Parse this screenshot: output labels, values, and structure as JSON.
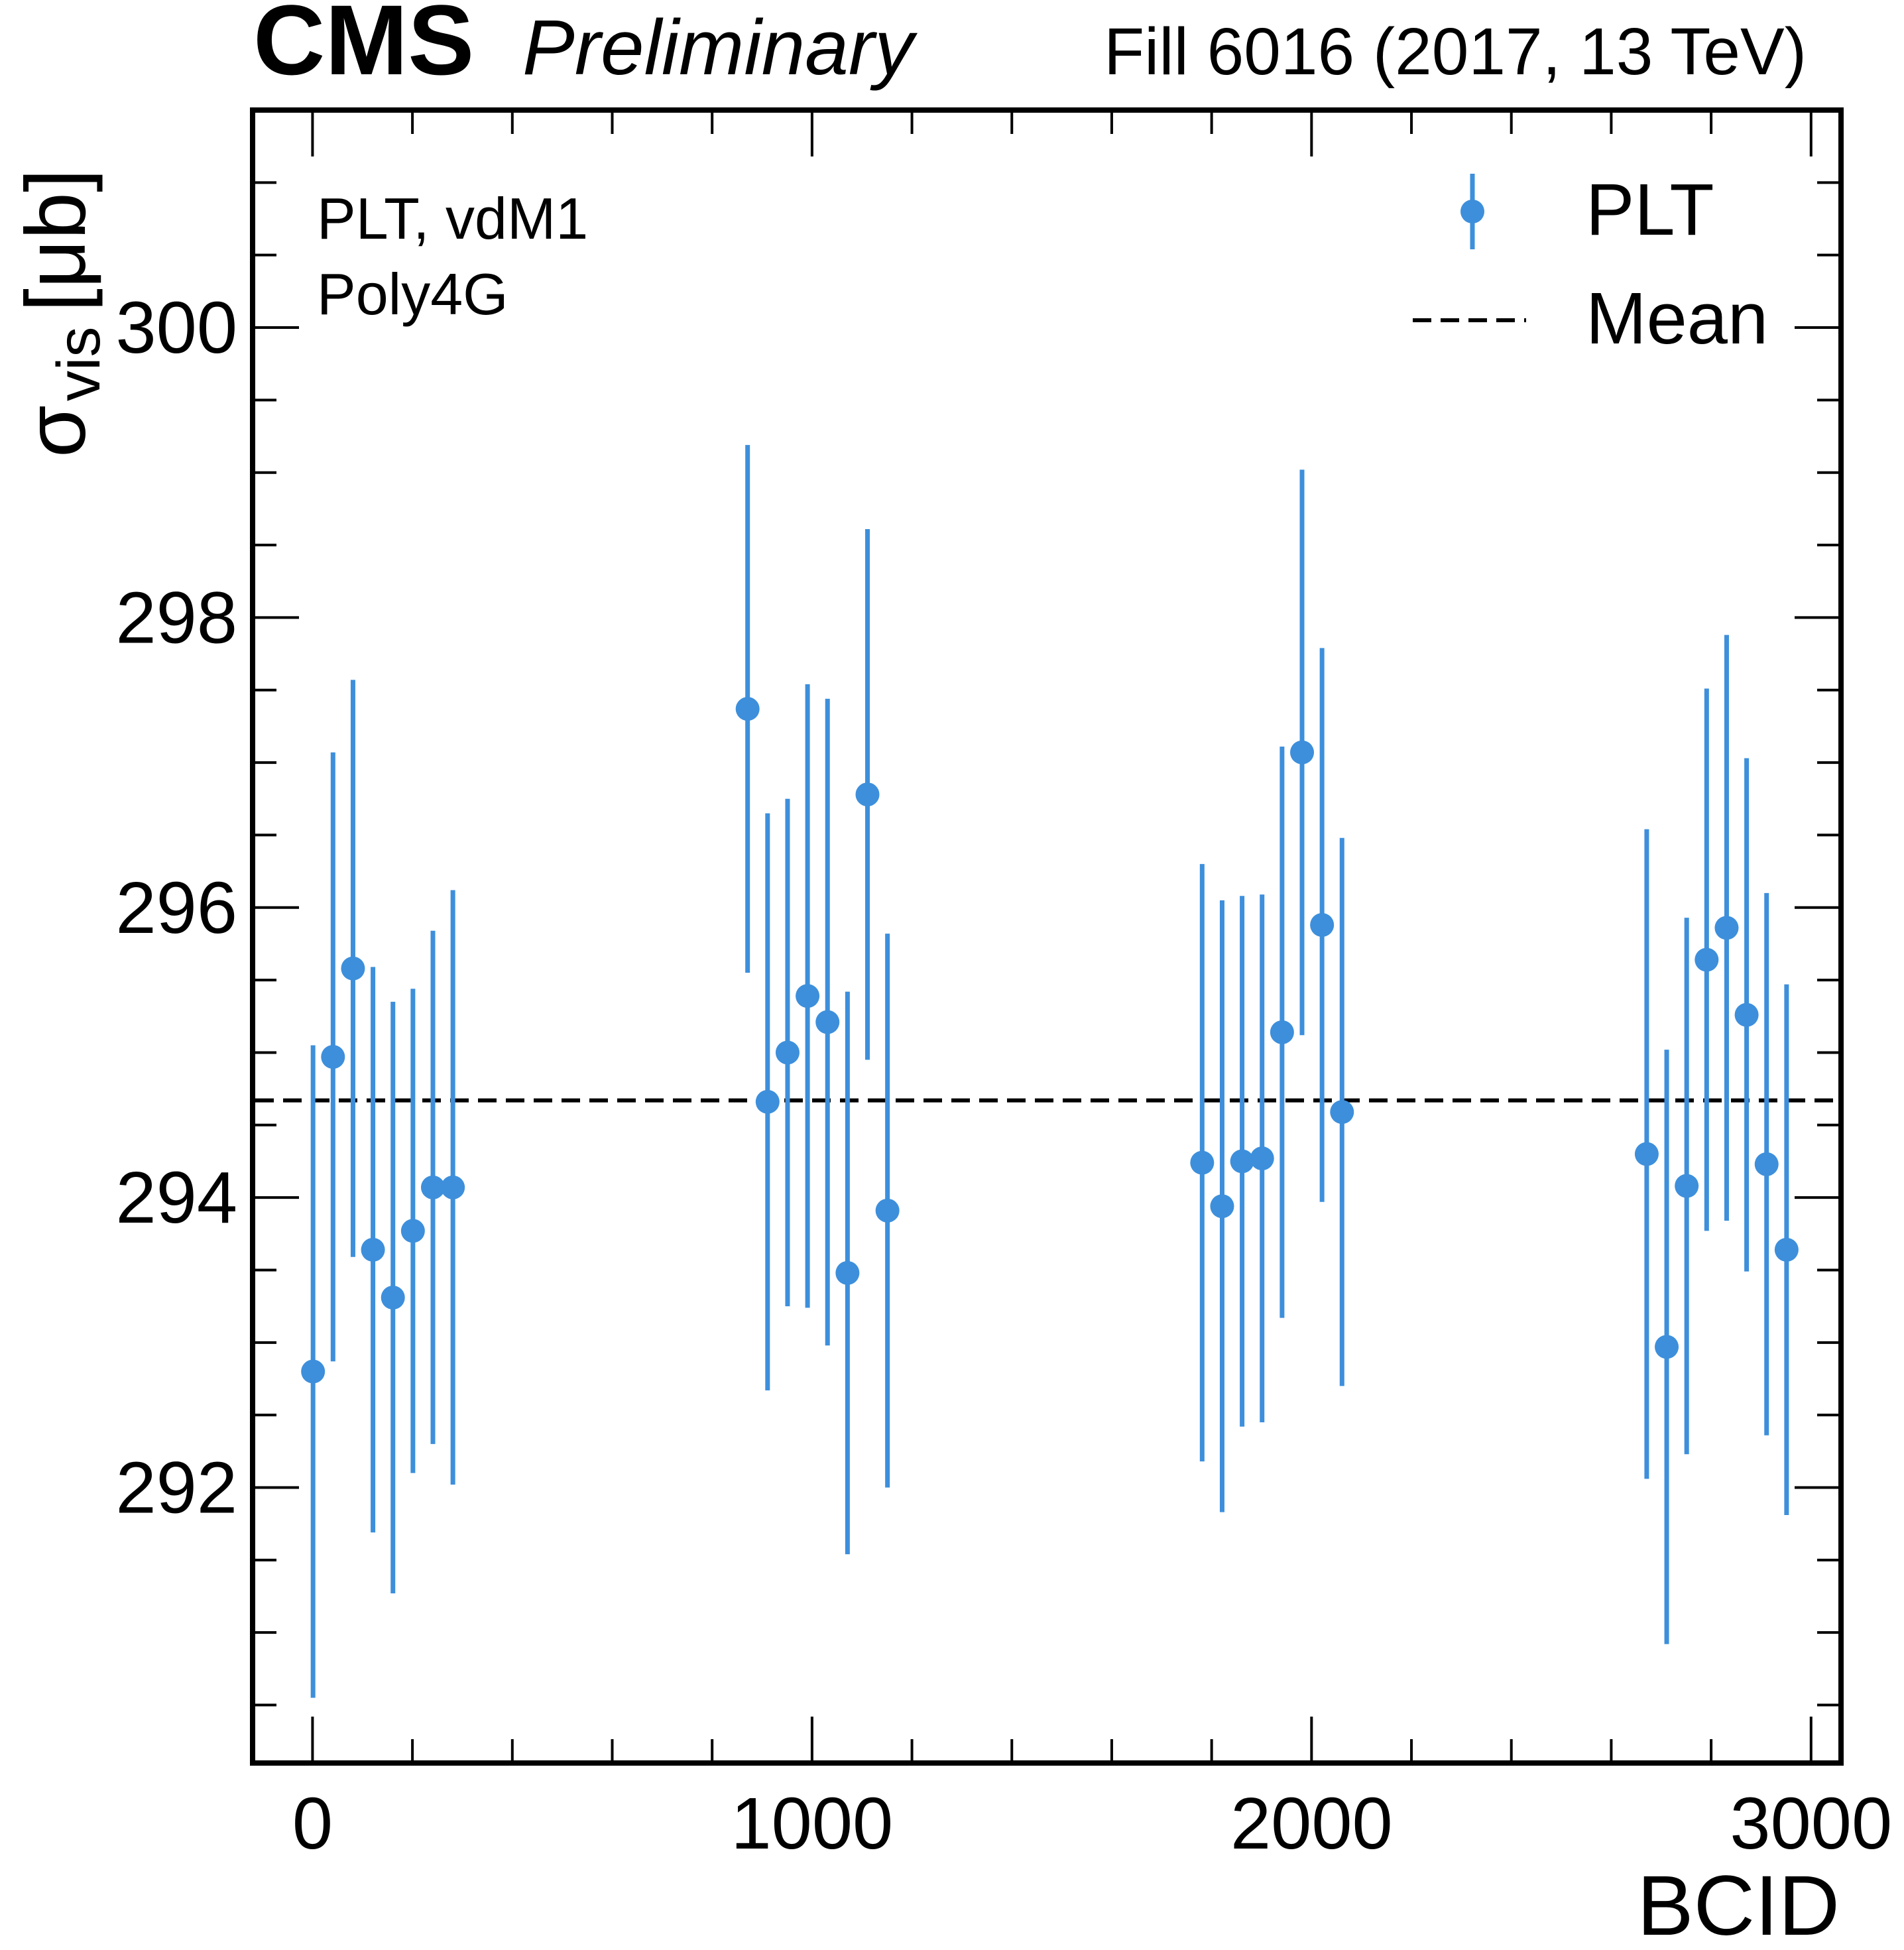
{
  "header": {
    "experiment": "CMS",
    "status": "Preliminary",
    "run_info": "Fill 6016 (2017, 13 TeV)"
  },
  "annotation": {
    "line1": "PLT, vdM1",
    "line2": "Poly4G"
  },
  "colors": {
    "series": "#3d8fdb",
    "mean": "#000000",
    "axes": "#000000"
  },
  "chart_data": {
    "type": "scatter",
    "xlabel": "BCID",
    "ylabel_main": "σ",
    "ylabel_sub": "vis",
    "ylabel_unit": "[μb]",
    "xlim": [
      -120,
      3060
    ],
    "ylim": [
      290.1,
      301.5
    ],
    "x_ticks": [
      0,
      1000,
      2000,
      3000
    ],
    "x_tick_labels": [
      "0",
      "1000",
      "2000",
      "3000"
    ],
    "y_ticks": [
      292,
      294,
      296,
      298,
      300
    ],
    "y_tick_labels": [
      "292",
      "294",
      "296",
      "298",
      "300"
    ],
    "grid": false,
    "legend_position": "top-right",
    "legend": [
      {
        "label": "PLT",
        "kind": "marker"
      },
      {
        "label": "Mean",
        "kind": "dashed-line"
      }
    ],
    "series": [
      {
        "name": "PLT",
        "points": [
          {
            "x": 1,
            "y": 292.8,
            "err": 2.25
          },
          {
            "x": 41,
            "y": 294.97,
            "err": 2.1
          },
          {
            "x": 81,
            "y": 295.58,
            "err": 1.99
          },
          {
            "x": 121,
            "y": 293.64,
            "err": 1.95
          },
          {
            "x": 161,
            "y": 293.31,
            "err": 2.04
          },
          {
            "x": 201,
            "y": 293.77,
            "err": 1.67
          },
          {
            "x": 241,
            "y": 294.07,
            "err": 1.77
          },
          {
            "x": 281,
            "y": 294.07,
            "err": 2.05
          },
          {
            "x": 871,
            "y": 297.37,
            "err": 1.82
          },
          {
            "x": 911,
            "y": 294.66,
            "err": 1.99
          },
          {
            "x": 951,
            "y": 295.0,
            "err": 1.75
          },
          {
            "x": 991,
            "y": 295.39,
            "err": 2.15
          },
          {
            "x": 1031,
            "y": 295.21,
            "err": 2.23
          },
          {
            "x": 1071,
            "y": 293.48,
            "err": 1.94
          },
          {
            "x": 1111,
            "y": 296.78,
            "err": 1.83
          },
          {
            "x": 1151,
            "y": 293.91,
            "err": 1.91
          },
          {
            "x": 1781,
            "y": 294.24,
            "err": 2.06
          },
          {
            "x": 1821,
            "y": 293.94,
            "err": 2.11
          },
          {
            "x": 1861,
            "y": 294.25,
            "err": 1.83
          },
          {
            "x": 1901,
            "y": 294.27,
            "err": 1.82
          },
          {
            "x": 1941,
            "y": 295.14,
            "err": 1.97
          },
          {
            "x": 1981,
            "y": 297.07,
            "err": 1.95
          },
          {
            "x": 2021,
            "y": 295.88,
            "err": 1.91
          },
          {
            "x": 2061,
            "y": 294.59,
            "err": 1.89
          },
          {
            "x": 2671,
            "y": 294.3,
            "err": 2.24
          },
          {
            "x": 2711,
            "y": 292.97,
            "err": 2.05
          },
          {
            "x": 2751,
            "y": 294.08,
            "err": 1.85
          },
          {
            "x": 2791,
            "y": 295.64,
            "err": 1.87
          },
          {
            "x": 2831,
            "y": 295.86,
            "err": 2.02
          },
          {
            "x": 2871,
            "y": 295.26,
            "err": 1.77
          },
          {
            "x": 2911,
            "y": 294.23,
            "err": 1.87
          },
          {
            "x": 2951,
            "y": 293.64,
            "err": 1.83
          }
        ]
      }
    ],
    "mean": 294.67
  }
}
